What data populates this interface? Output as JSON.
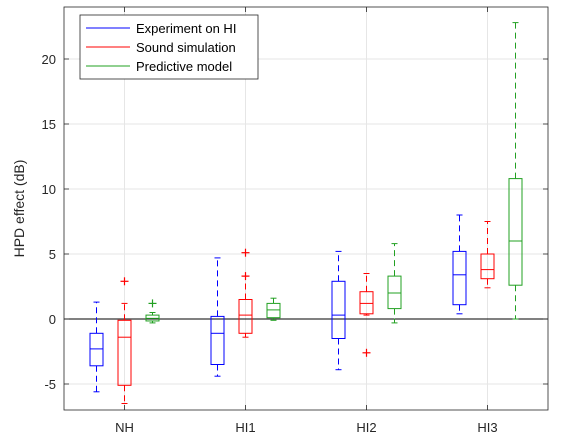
{
  "chart_data": {
    "type": "box",
    "title": "",
    "xlabel": "",
    "ylabel": "HPD effect (dB)",
    "categories": [
      "NH",
      "HI1",
      "HI2",
      "HI3"
    ],
    "ylim": [
      -7,
      24
    ],
    "yticks": [
      -5,
      0,
      5,
      10,
      15,
      20
    ],
    "ytick_labels": [
      "-5",
      "0",
      "5",
      "10",
      "15",
      "20"
    ],
    "grid": true,
    "zero_line": true,
    "legend_position": "top-left",
    "series": [
      {
        "name": "Experiment on HI",
        "color": "#0000ff",
        "boxes": [
          {
            "whisker_low": -5.6,
            "q1": -3.6,
            "median": -2.3,
            "q3": -1.1,
            "whisker_high": 1.3,
            "outliers": []
          },
          {
            "whisker_low": -4.4,
            "q1": -3.5,
            "median": -1.1,
            "q3": 0.2,
            "whisker_high": 4.7,
            "outliers": []
          },
          {
            "whisker_low": -3.9,
            "q1": -1.5,
            "median": 0.3,
            "q3": 2.9,
            "whisker_high": 5.2,
            "outliers": []
          },
          {
            "whisker_low": 0.4,
            "q1": 1.1,
            "median": 3.4,
            "q3": 5.2,
            "whisker_high": 8.0,
            "outliers": []
          }
        ]
      },
      {
        "name": "Sound simulation",
        "color": "#ff0000",
        "boxes": [
          {
            "whisker_low": -6.5,
            "q1": -5.1,
            "median": -1.4,
            "q3": -0.1,
            "whisker_high": 1.2,
            "outliers": [
              2.9
            ]
          },
          {
            "whisker_low": -1.4,
            "q1": -1.1,
            "median": 0.3,
            "q3": 1.5,
            "whisker_high": 3.3,
            "outliers": [
              5.1,
              3.3
            ]
          },
          {
            "whisker_low": 0.3,
            "q1": 0.4,
            "median": 1.2,
            "q3": 2.1,
            "whisker_high": 3.5,
            "outliers": [
              -2.6
            ]
          },
          {
            "whisker_low": 2.4,
            "q1": 3.1,
            "median": 3.8,
            "q3": 5.0,
            "whisker_high": 7.5,
            "outliers": []
          }
        ]
      },
      {
        "name": "Predictive model",
        "color": "#22a022",
        "boxes": [
          {
            "whisker_low": -0.3,
            "q1": -0.15,
            "median": 0.05,
            "q3": 0.3,
            "whisker_high": 0.5,
            "outliers": [
              1.2
            ]
          },
          {
            "whisker_low": -0.1,
            "q1": 0.1,
            "median": 0.7,
            "q3": 1.2,
            "whisker_high": 1.6,
            "outliers": []
          },
          {
            "whisker_low": -0.3,
            "q1": 0.8,
            "median": 2.0,
            "q3": 3.3,
            "whisker_high": 5.8,
            "outliers": []
          },
          {
            "whisker_low": 0.0,
            "q1": 2.6,
            "median": 6.0,
            "q3": 10.8,
            "whisker_high": 22.8,
            "outliers": []
          }
        ]
      }
    ]
  }
}
